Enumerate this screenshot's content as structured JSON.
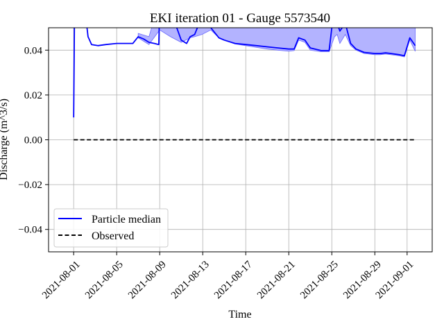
{
  "chart_data": {
    "type": "line",
    "title": "EKI iteration 01 - Gauge 5573540",
    "xlabel": "Time",
    "ylabel": "Discharge (m^3/s)",
    "xlim": [
      "2021-07-29T16:00",
      "2021-09-03T08:00"
    ],
    "ylim": [
      -0.05,
      0.05
    ],
    "x_ticks": [
      "2021-08-01",
      "2021-08-05",
      "2021-08-09",
      "2021-08-13",
      "2021-08-17",
      "2021-08-21",
      "2021-08-25",
      "2021-08-29",
      "2021-09-01"
    ],
    "y_ticks": [
      "−0.04",
      "−0.02",
      "0.00",
      "0.02",
      "0.04"
    ],
    "y_tick_values": [
      -0.04,
      -0.02,
      0.0,
      0.02,
      0.04
    ],
    "grid": true,
    "legend_placement": "lower-left",
    "legend": [
      "Particle median",
      "Observed"
    ],
    "colors": {
      "median": "#0000ff",
      "band_fill": "#b3b3ff",
      "band_edge": "#6a6aff",
      "observed": "#000000"
    },
    "series": [
      {
        "name": "Particle median",
        "style": "solid",
        "x": [
          "2021-08-01T00:00",
          "2021-08-01T02:00",
          "2021-08-01T05:00",
          "2021-08-02T00:00",
          "2021-08-02T08:00",
          "2021-08-02T16:00",
          "2021-08-03T06:00",
          "2021-08-04T00:00",
          "2021-08-05T00:00",
          "2021-08-06T00:00",
          "2021-08-06T12:00",
          "2021-08-07T00:00",
          "2021-08-07T12:00",
          "2021-08-08T00:00",
          "2021-08-08T12:00",
          "2021-08-08T22:00",
          "2021-08-09T00:00",
          "2021-08-10T00:00",
          "2021-08-10T14:00",
          "2021-08-11T00:00",
          "2021-08-11T12:00",
          "2021-08-11T20:00",
          "2021-08-12T06:00",
          "2021-08-12T12:00",
          "2021-08-12T22:00",
          "2021-08-13T18:00",
          "2021-08-14T12:00",
          "2021-08-15T00:00",
          "2021-08-16T00:00",
          "2021-08-17T00:00",
          "2021-08-18T00:00",
          "2021-08-19T00:00",
          "2021-08-20T00:00",
          "2021-08-21T00:00",
          "2021-08-21T12:00",
          "2021-08-21T22:00",
          "2021-08-22T12:00",
          "2021-08-23T00:00",
          "2021-08-24T00:00",
          "2021-08-24T18:00",
          "2021-08-25T06:00",
          "2021-08-25T12:00",
          "2021-08-25T18:00",
          "2021-08-26T06:00",
          "2021-08-26T18:00",
          "2021-08-27T06:00",
          "2021-08-28T00:00",
          "2021-08-29T00:00",
          "2021-08-29T12:00",
          "2021-08-30T00:00",
          "2021-08-30T12:00",
          "2021-08-31T06:00",
          "2021-08-31T18:00",
          "2021-09-01T06:00",
          "2021-09-01T18:00"
        ],
        "y": [
          0.01,
          0.06,
          0.08,
          0.06,
          0.046,
          0.0425,
          0.042,
          0.0425,
          0.043,
          0.043,
          0.043,
          0.046,
          0.045,
          0.0435,
          0.043,
          0.0425,
          0.06,
          0.06,
          0.05,
          0.0445,
          0.043,
          0.046,
          0.047,
          0.05,
          0.06,
          0.05,
          0.0455,
          0.0445,
          0.043,
          0.0425,
          0.042,
          0.0415,
          0.041,
          0.0405,
          0.0405,
          0.0455,
          0.0445,
          0.041,
          0.0398,
          0.0398,
          0.06,
          0.052,
          0.0485,
          0.052,
          0.043,
          0.0405,
          0.039,
          0.0385,
          0.0385,
          0.0388,
          0.0385,
          0.038,
          0.0375,
          0.0455,
          0.042
        ]
      },
      {
        "name": "Observed",
        "style": "dashed",
        "x": [
          "2021-08-01T00:00",
          "2021-09-01T18:00"
        ],
        "y": [
          0.0,
          0.0
        ]
      }
    ],
    "band": {
      "x": [
        "2021-08-07T00:00",
        "2021-08-08T00:00",
        "2021-08-09T00:00",
        "2021-08-10T00:00",
        "2021-08-11T00:00",
        "2021-08-11T20:00",
        "2021-08-12T06:00",
        "2021-08-12T22:00",
        "2021-08-13T18:00",
        "2021-08-14T12:00",
        "2021-08-15T00:00",
        "2021-08-16T00:00",
        "2021-08-17T00:00",
        "2021-08-18T00:00",
        "2021-08-19T00:00",
        "2021-08-20T00:00",
        "2021-08-21T00:00",
        "2021-08-21T12:00",
        "2021-08-21T22:00",
        "2021-08-22T12:00",
        "2021-08-23T00:00",
        "2021-08-24T00:00",
        "2021-08-24T18:00",
        "2021-08-25T06:00",
        "2021-08-25T12:00",
        "2021-08-25T18:00",
        "2021-08-26T06:00",
        "2021-08-26T18:00",
        "2021-08-27T06:00",
        "2021-08-28T00:00",
        "2021-08-29T00:00",
        "2021-08-29T12:00",
        "2021-08-30T00:00",
        "2021-08-30T12:00",
        "2021-08-31T06:00",
        "2021-08-31T18:00",
        "2021-09-01T06:00",
        "2021-09-01T18:00"
      ],
      "lower": [
        0.0455,
        0.0425,
        0.049,
        0.046,
        0.0435,
        0.0455,
        0.046,
        0.047,
        0.049,
        0.0455,
        0.0445,
        0.0428,
        0.042,
        0.0412,
        0.0405,
        0.04,
        0.0395,
        0.0398,
        0.0445,
        0.0435,
        0.04,
        0.0393,
        0.0393,
        0.046,
        0.047,
        0.043,
        0.047,
        0.042,
        0.04,
        0.0385,
        0.038,
        0.038,
        0.0383,
        0.038,
        0.0375,
        0.037,
        0.0445,
        0.0395
      ],
      "upper": [
        0.0475,
        0.046,
        0.062,
        0.06,
        0.06,
        0.06,
        0.06,
        0.06,
        0.06,
        0.06,
        0.06,
        0.06,
        0.06,
        0.06,
        0.06,
        0.06,
        0.06,
        0.06,
        0.06,
        0.06,
        0.06,
        0.06,
        0.06,
        0.06,
        0.06,
        0.06,
        0.06,
        0.06,
        0.06,
        0.06,
        0.06,
        0.06,
        0.06,
        0.06,
        0.06,
        0.06,
        0.06,
        0.06
      ]
    }
  }
}
